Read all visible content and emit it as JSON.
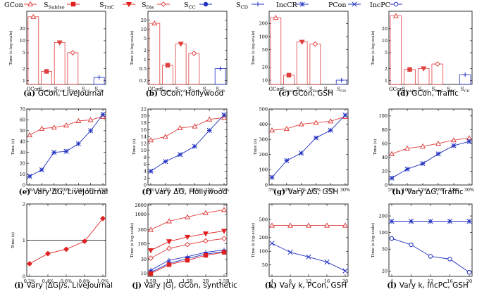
{
  "legend": [
    {
      "name": "GCon",
      "color": "#e04040",
      "marker": "triangle",
      "filled": false
    },
    {
      "name": "SSubIso",
      "color": "#e02020",
      "marker": "square",
      "filled": true
    },
    {
      "name": "STriC",
      "color": "#e02020",
      "marker": "tri-down",
      "filled": true
    },
    {
      "name": "SDis",
      "color": "#e04040",
      "marker": "diamond",
      "filled": false
    },
    {
      "name": "SCC",
      "color": "#2030c0",
      "marker": "circle",
      "filled": true
    },
    {
      "name": "SCD",
      "color": "#2030c0",
      "marker": "plus",
      "filled": false
    },
    {
      "name": "IncCR",
      "color": "#2030c0",
      "marker": "star",
      "filled": false
    },
    {
      "name": "PCon",
      "color": "#2030c0",
      "marker": "x",
      "filled": false
    },
    {
      "name": "IncPC",
      "color": "#2030c0",
      "marker": "circle",
      "filled": false
    }
  ],
  "chart_data": [
    {
      "type": "bar",
      "id": "a",
      "caption_label": "(a)",
      "caption": "GCon, LiveJournal",
      "ylabel": "Time (s log-scale)",
      "log": true,
      "ylim": [
        0.8,
        55
      ],
      "yticks": [
        1,
        2,
        5,
        10,
        20
      ],
      "categories": [
        "GCon",
        "SSubIso",
        "STriC",
        "SDisC",
        "SCC",
        "SCD"
      ],
      "values": [
        40,
        1.7,
        9,
        5,
        null,
        1.2
      ],
      "colors": [
        "#e04040",
        "#e04040",
        "#e04040",
        "#e04040",
        "#2030c0",
        "#2030c0"
      ],
      "markers": [
        "triangle",
        "square",
        "tri-down",
        "diamond",
        "circle",
        "plus"
      ],
      "filled": [
        false,
        true,
        true,
        false,
        true,
        false
      ]
    },
    {
      "type": "bar",
      "id": "b",
      "caption_label": "(b)",
      "caption": "GCon, Hollywood",
      "ylabel": "Time (s log-scale)",
      "log": true,
      "ylim": [
        0.15,
        40
      ],
      "yticks": [
        0.2,
        0.5,
        1,
        2,
        5,
        10,
        20
      ],
      "categories": [
        "GCon",
        "SSubIso",
        "STriC",
        "SDisC",
        "SCC",
        "SCD"
      ],
      "values": [
        16,
        0.65,
        3.3,
        1.6,
        null,
        0.5
      ],
      "colors": [
        "#e04040",
        "#e04040",
        "#e04040",
        "#e04040",
        "#2030c0",
        "#2030c0"
      ],
      "markers": [
        "triangle",
        "square",
        "tri-down",
        "diamond",
        "circle",
        "plus"
      ],
      "filled": [
        false,
        true,
        true,
        false,
        true,
        false
      ]
    },
    {
      "type": "bar",
      "id": "c",
      "caption_label": "(c)",
      "caption": "GCon, GSH",
      "ylabel": "Time (s log-scale)",
      "log": true,
      "ylim": [
        8,
        380
      ],
      "yticks": [
        10,
        20,
        50,
        100,
        200
      ],
      "categories": [
        "GCon",
        "SSubIso",
        "STriC",
        "SDisC",
        "SCC",
        "SCD"
      ],
      "values": [
        270,
        13,
        75,
        67,
        null,
        10
      ],
      "colors": [
        "#e04040",
        "#e04040",
        "#e04040",
        "#e04040",
        "#2030c0",
        "#2030c0"
      ],
      "markers": [
        "triangle",
        "square",
        "tri-down",
        "diamond",
        "circle",
        "plus"
      ],
      "filled": [
        false,
        true,
        true,
        false,
        true,
        false
      ]
    },
    {
      "type": "bar",
      "id": "d",
      "caption_label": "(d)",
      "caption": "GCon, Traffic",
      "ylabel": "Time (s log-scale)",
      "log": true,
      "ylim": [
        0.8,
        55
      ],
      "yticks": [
        1,
        2,
        5,
        10,
        20
      ],
      "categories": [
        "GCon",
        "SSubIso",
        "STriC",
        "SDisC",
        "SCC",
        "SCD"
      ],
      "values": [
        42,
        1.9,
        2,
        2.6,
        null,
        1.4
      ],
      "colors": [
        "#e04040",
        "#e04040",
        "#e04040",
        "#e04040",
        "#2030c0",
        "#2030c0"
      ],
      "markers": [
        "triangle",
        "square",
        "tri-down",
        "diamond",
        "circle",
        "plus"
      ],
      "filled": [
        false,
        true,
        true,
        false,
        true,
        false
      ]
    },
    {
      "type": "line",
      "id": "e",
      "caption_label": "(e)",
      "caption": "Vary ΔG, LiveJournal",
      "ylabel": "Time (s)",
      "log": false,
      "ylim": [
        0,
        70
      ],
      "yticks": [
        0,
        10,
        20,
        30,
        40,
        50,
        60,
        70
      ],
      "x": [
        "5%",
        "10%",
        "15%",
        "20%",
        "25%",
        "30%",
        "35%"
      ],
      "series": [
        {
          "name": "GCon",
          "color": "#e04040",
          "marker": "triangle",
          "values": [
            46,
            52,
            53,
            55,
            59,
            60,
            63
          ]
        },
        {
          "name": "IncCR",
          "color": "#2030c0",
          "marker": "star",
          "values": [
            8,
            14,
            30,
            31,
            38,
            50,
            65
          ]
        }
      ]
    },
    {
      "type": "line",
      "id": "f",
      "caption_label": "(f)",
      "caption": "Vary ΔG, Hollywood",
      "ylabel": "Time (s)",
      "log": false,
      "ylim": [
        0,
        22
      ],
      "yticks": [
        0,
        2,
        4,
        6,
        8,
        10,
        12,
        14,
        16,
        18,
        20,
        22
      ],
      "x": [
        "5%",
        "10%",
        "15%",
        "20%",
        "25%",
        "30%"
      ],
      "series": [
        {
          "name": "GCon",
          "color": "#e04040",
          "marker": "triangle",
          "values": [
            13,
            14,
            16.5,
            17,
            19,
            19.5
          ]
        },
        {
          "name": "IncCR",
          "color": "#2030c0",
          "marker": "star",
          "values": [
            4,
            6.8,
            8.8,
            11.2,
            15.8,
            20.3
          ]
        }
      ]
    },
    {
      "type": "line",
      "id": "g",
      "caption_label": "(g)",
      "caption": "Vary ΔG, GSH",
      "ylabel": "Time (s)",
      "log": false,
      "ylim": [
        0,
        500
      ],
      "yticks": [
        0,
        100,
        200,
        300,
        400,
        500
      ],
      "x": [
        "5%",
        "10%",
        "15%",
        "20%",
        "25%",
        "30%"
      ],
      "series": [
        {
          "name": "GCon",
          "color": "#e04040",
          "marker": "triangle",
          "values": [
            360,
            370,
            400,
            410,
            420,
            450
          ]
        },
        {
          "name": "IncCR",
          "color": "#2030c0",
          "marker": "star",
          "values": [
            50,
            160,
            210,
            310,
            360,
            460
          ]
        }
      ]
    },
    {
      "type": "line",
      "id": "h",
      "caption_label": "(h)",
      "caption": "Vary ΔG, Traffic",
      "ylabel": "Time (s)",
      "log": false,
      "ylim": [
        0,
        110
      ],
      "yticks": [
        0,
        20,
        40,
        60,
        80,
        100
      ],
      "x": [
        "5%",
        "10%",
        "15%",
        "20%",
        "25%",
        "30%"
      ],
      "series": [
        {
          "name": "GCon",
          "color": "#e04040",
          "marker": "triangle",
          "values": [
            45,
            53,
            56,
            60,
            65,
            68
          ]
        },
        {
          "name": "IncCR",
          "color": "#2030c0",
          "marker": "star",
          "values": [
            10,
            23,
            31,
            45,
            57,
            63
          ]
        }
      ]
    },
    {
      "type": "line",
      "id": "i",
      "caption_label": "(i)",
      "caption": "Vary |ΔG|/s, LiveJournal",
      "ylabel": "Time (s)",
      "log": false,
      "ylim": [
        0,
        2
      ],
      "yticks": [
        0,
        1,
        2
      ],
      "hline": 1,
      "x": [
        "0.2%",
        "0.4%",
        "0.6%",
        "0.8%",
        "1.0%"
      ],
      "series": [
        {
          "name": "SDis",
          "color": "#e02020",
          "marker": "diamond-filled",
          "values": [
            0.35,
            0.63,
            0.75,
            0.97,
            1.6
          ]
        }
      ]
    },
    {
      "type": "line",
      "id": "j",
      "caption_label": "(j)",
      "caption": "Vary |G|, GCon, synthetic",
      "ylabel": "Time (s log-scale)",
      "log": true,
      "ylim": [
        8,
        2200
      ],
      "yticks": [
        10,
        30,
        100,
        300,
        1000,
        2000
      ],
      "x": [
        "0.5B",
        "1B",
        "1.5B",
        "2B",
        "2.5B"
      ],
      "series": [
        {
          "name": "GCon",
          "color": "#e04040",
          "marker": "triangle",
          "values": [
            300,
            580,
            800,
            1100,
            1400
          ]
        },
        {
          "name": "STriC",
          "color": "#e02020",
          "marker": "tri-down",
          "values": [
            60,
            120,
            170,
            220,
            270
          ]
        },
        {
          "name": "SDis",
          "color": "#e04040",
          "marker": "diamond",
          "values": [
            33,
            70,
            95,
            125,
            150
          ]
        },
        {
          "name": "SCD",
          "color": "#2030c0",
          "marker": "plus",
          "values": [
            13,
            28,
            37,
            52,
            62
          ]
        },
        {
          "name": "SCC",
          "color": "#2030c0",
          "marker": "circle",
          "values": [
            11,
            22,
            32,
            45,
            55
          ]
        },
        {
          "name": "SSubIso",
          "color": "#e02020",
          "marker": "square",
          "values": [
            10,
            20,
            28,
            41,
            52
          ]
        }
      ]
    },
    {
      "type": "line",
      "id": "k",
      "caption_label": "(k)",
      "caption": "Vary k, PCon, GSH",
      "ylabel": "Time (s log-scale)",
      "log": true,
      "ylim": [
        28,
        1100
      ],
      "yticks": [
        50,
        100,
        200,
        500
      ],
      "x": [
        "4",
        "8",
        "12",
        "16",
        "20"
      ],
      "series": [
        {
          "name": "GCon",
          "color": "#e04040",
          "marker": "triangle",
          "values": [
            370,
            370,
            370,
            370,
            370
          ]
        },
        {
          "name": "PCon",
          "color": "#2030c0",
          "marker": "x",
          "values": [
            150,
            95,
            75,
            58,
            37
          ]
        }
      ]
    },
    {
      "type": "line",
      "id": "l",
      "caption_label": "(l)",
      "caption": "Vary k, IncPC, GSH",
      "ylabel": "Time (s log-scale)",
      "log": true,
      "ylim": [
        16,
        330
      ],
      "yticks": [
        20,
        50,
        100,
        200
      ],
      "x": [
        "4",
        "8",
        "12",
        "16",
        "20"
      ],
      "series": [
        {
          "name": "IncCR",
          "color": "#2030c0",
          "marker": "star",
          "values": [
            160,
            160,
            160,
            160,
            160
          ]
        },
        {
          "name": "IncPC",
          "color": "#2030c0",
          "marker": "circle",
          "values": [
            78,
            60,
            37,
            33,
            19
          ]
        }
      ]
    }
  ]
}
